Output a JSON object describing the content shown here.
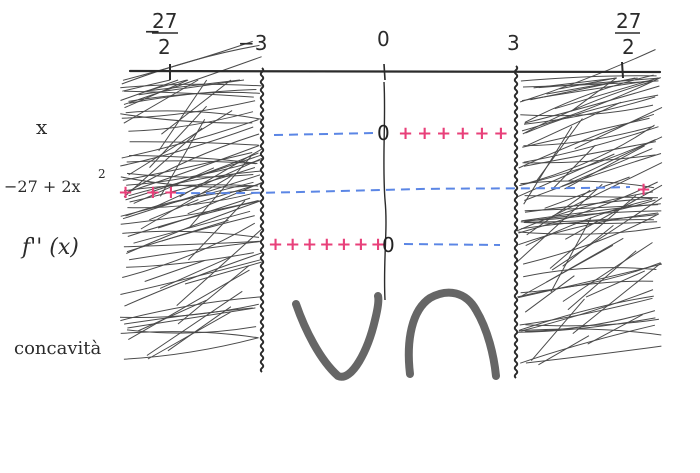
{
  "axis": {
    "ticks": [
      {
        "numerator": "27",
        "denominator": "2",
        "sign": "−"
      },
      {
        "label": "−3"
      },
      {
        "label": "0"
      },
      {
        "label": "3"
      },
      {
        "numerator": "27",
        "denominator": "2",
        "sign": ""
      }
    ]
  },
  "rows": {
    "x": {
      "label": "x",
      "zero": "0",
      "plus": "++++++"
    },
    "quad": {
      "label_main": "−27 + 2x",
      "label_exp": "2",
      "plus_left": "+ ++",
      "plus_right": "+"
    },
    "f2": {
      "label": "f'' (x)",
      "zero": "0",
      "plus": "+++++++"
    },
    "concavity": {
      "label": "concavità"
    }
  },
  "colors": {
    "ink": "#2b2b2b",
    "positive": "#e8407a",
    "negative": "#5b86e5",
    "concavity_curve": "#666666"
  },
  "concavity_shapes": [
    "cup-up",
    "cap-down"
  ]
}
